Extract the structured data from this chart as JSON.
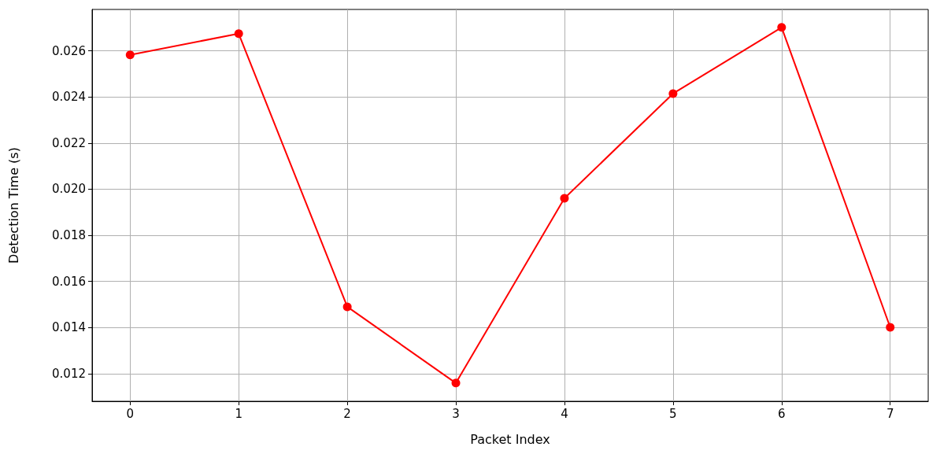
{
  "chart_data": {
    "type": "line",
    "xlabel": "Packet Index",
    "ylabel": "Detection Time (s)",
    "x": [
      0,
      1,
      2,
      3,
      4,
      5,
      6,
      7
    ],
    "series": [
      {
        "color": "#ff0000",
        "values": [
          0.02583,
          0.02675,
          0.0149,
          0.01159,
          0.01961,
          0.02415,
          0.02702,
          0.01401
        ]
      }
    ],
    "xlim": [
      -0.35,
      7.35
    ],
    "xticks": [
      0,
      1,
      2,
      3,
      4,
      5,
      6,
      7
    ],
    "ylim": [
      0.0108,
      0.0278
    ],
    "yticks": [
      0.012,
      0.014,
      0.016,
      0.018,
      {
        "value": 0.02,
        "label": "0.020"
      },
      0.022,
      0.024,
      0.026
    ],
    "grid": true,
    "marker": "circle",
    "line_style": "solid"
  }
}
